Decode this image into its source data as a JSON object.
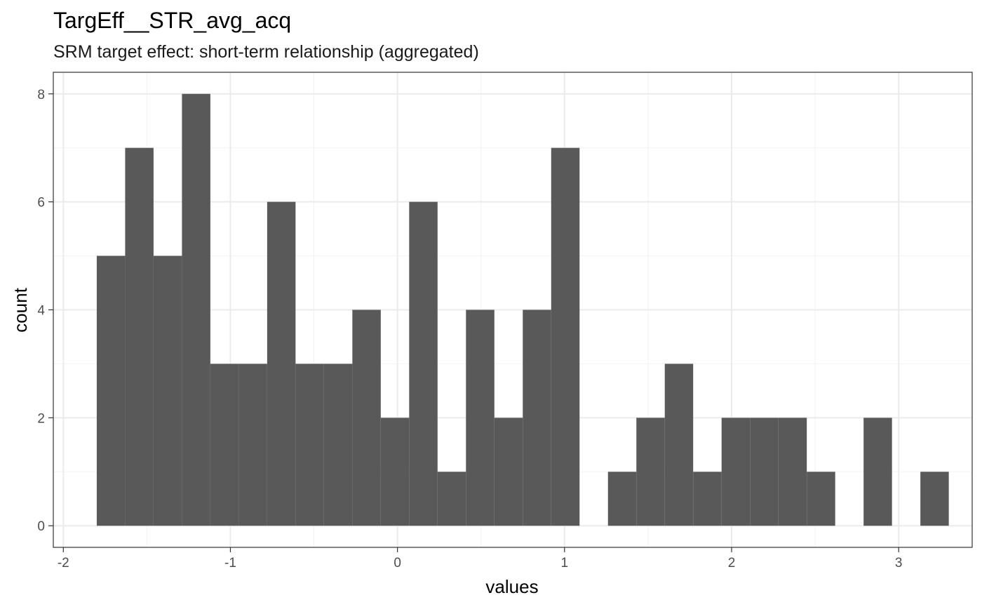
{
  "chart_data": {
    "type": "bar",
    "title": "TargEff__STR_avg_acq",
    "subtitle": "SRM target effect: short-term relationship (aggregated)",
    "xlabel": "values",
    "ylabel": "count",
    "xlim": [
      -2.06,
      3.44
    ],
    "ylim": [
      -0.4,
      8.4
    ],
    "x_ticks": [
      -2,
      -1,
      0,
      1,
      2,
      3
    ],
    "y_ticks": [
      0,
      2,
      4,
      6,
      8
    ],
    "bin_width": 0.17,
    "bars": [
      {
        "x0": -1.8,
        "x1": -1.63,
        "count": 5
      },
      {
        "x0": -1.63,
        "x1": -1.46,
        "count": 7
      },
      {
        "x0": -1.46,
        "x1": -1.29,
        "count": 5
      },
      {
        "x0": -1.29,
        "x1": -1.12,
        "count": 8
      },
      {
        "x0": -1.12,
        "x1": -0.95,
        "count": 3
      },
      {
        "x0": -0.95,
        "x1": -0.78,
        "count": 3
      },
      {
        "x0": -0.78,
        "x1": -0.61,
        "count": 6
      },
      {
        "x0": -0.61,
        "x1": -0.44,
        "count": 3
      },
      {
        "x0": -0.44,
        "x1": -0.27,
        "count": 3
      },
      {
        "x0": -0.27,
        "x1": -0.1,
        "count": 4
      },
      {
        "x0": -0.1,
        "x1": 0.07,
        "count": 2
      },
      {
        "x0": 0.07,
        "x1": 0.24,
        "count": 6
      },
      {
        "x0": 0.24,
        "x1": 0.41,
        "count": 1
      },
      {
        "x0": 0.41,
        "x1": 0.58,
        "count": 4
      },
      {
        "x0": 0.58,
        "x1": 0.75,
        "count": 2
      },
      {
        "x0": 0.75,
        "x1": 0.92,
        "count": 4
      },
      {
        "x0": 0.92,
        "x1": 1.09,
        "count": 7
      },
      {
        "x0": 1.09,
        "x1": 1.26,
        "count": 0
      },
      {
        "x0": 1.26,
        "x1": 1.43,
        "count": 1
      },
      {
        "x0": 1.43,
        "x1": 1.6,
        "count": 2
      },
      {
        "x0": 1.6,
        "x1": 1.77,
        "count": 3
      },
      {
        "x0": 1.77,
        "x1": 1.94,
        "count": 1
      },
      {
        "x0": 1.94,
        "x1": 2.11,
        "count": 2
      },
      {
        "x0": 2.11,
        "x1": 2.28,
        "count": 2
      },
      {
        "x0": 2.28,
        "x1": 2.45,
        "count": 2
      },
      {
        "x0": 2.45,
        "x1": 2.62,
        "count": 1
      },
      {
        "x0": 2.62,
        "x1": 2.79,
        "count": 0
      },
      {
        "x0": 2.79,
        "x1": 2.96,
        "count": 2
      },
      {
        "x0": 2.96,
        "x1": 3.13,
        "count": 0
      },
      {
        "x0": 3.13,
        "x1": 3.3,
        "count": 1
      }
    ],
    "bar_color": "#595959",
    "grid": true,
    "legend": "none"
  }
}
